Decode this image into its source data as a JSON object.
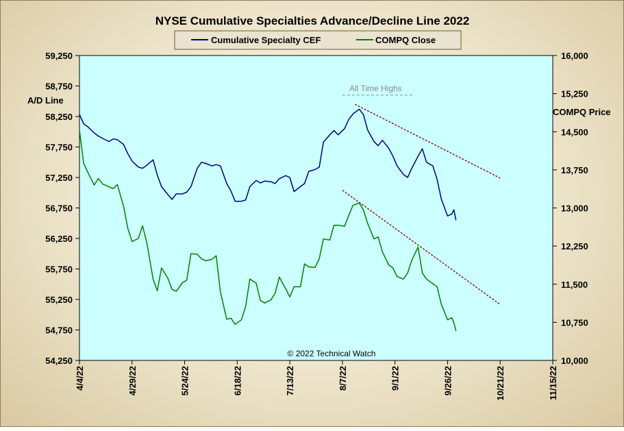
{
  "chart_data": {
    "type": "line",
    "title": "NYSE Cumulative Specialties Advance/Decline Line 2022",
    "ylabel_left": "A/D Line",
    "ylabel_right": "COMPQ Price",
    "annotation": "All Time Highs",
    "copyright": "© 2022 Technical Watch",
    "legend_position": "top-center",
    "grid": false,
    "colors": {
      "plot_bg": "#ccffff",
      "cef": "#000080",
      "compq": "#008000",
      "trend": "#800000",
      "annotation": "#8a8a8a"
    },
    "x_ticks": [
      "4/4/22",
      "4/29/22",
      "5/24/22",
      "6/18/22",
      "7/13/22",
      "8/7/22",
      "9/1/22",
      "9/26/22",
      "10/21/22",
      "11/15/22"
    ],
    "xlim": [
      "2022-04-04",
      "2022-11-15"
    ],
    "ylim_left": [
      54250,
      59250
    ],
    "yticks_left": [
      "59,250",
      "58,750",
      "58,250",
      "57,750",
      "57,250",
      "56,750",
      "56,250",
      "55,750",
      "55,250",
      "54,750",
      "54,250"
    ],
    "ylim_right": [
      10000,
      16000
    ],
    "yticks_right": [
      "16,000",
      "15,250",
      "14,500",
      "13,750",
      "13,000",
      "12,250",
      "11,500",
      "10,750",
      "10,000"
    ],
    "series": [
      {
        "name": "Cumulative Specialty CEF",
        "axis": "left",
        "points": [
          [
            "2022-04-04",
            58285
          ],
          [
            "2022-04-06",
            58130
          ],
          [
            "2022-04-08",
            58080
          ],
          [
            "2022-04-11",
            57980
          ],
          [
            "2022-04-13",
            57930
          ],
          [
            "2022-04-15",
            57890
          ],
          [
            "2022-04-18",
            57840
          ],
          [
            "2022-04-20",
            57880
          ],
          [
            "2022-04-22",
            57870
          ],
          [
            "2022-04-25",
            57790
          ],
          [
            "2022-04-27",
            57640
          ],
          [
            "2022-04-29",
            57520
          ],
          [
            "2022-05-02",
            57420
          ],
          [
            "2022-05-04",
            57400
          ],
          [
            "2022-05-06",
            57450
          ],
          [
            "2022-05-09",
            57540
          ],
          [
            "2022-05-11",
            57290
          ],
          [
            "2022-05-13",
            57100
          ],
          [
            "2022-05-16",
            56970
          ],
          [
            "2022-05-18",
            56890
          ],
          [
            "2022-05-20",
            56980
          ],
          [
            "2022-05-23",
            56980
          ],
          [
            "2022-05-25",
            57010
          ],
          [
            "2022-05-27",
            57100
          ],
          [
            "2022-05-30",
            57400
          ],
          [
            "2022-06-01",
            57500
          ],
          [
            "2022-06-03",
            57480
          ],
          [
            "2022-06-06",
            57440
          ],
          [
            "2022-06-08",
            57460
          ],
          [
            "2022-06-10",
            57440
          ],
          [
            "2022-06-13",
            57150
          ],
          [
            "2022-06-15",
            57030
          ],
          [
            "2022-06-17",
            56860
          ],
          [
            "2022-06-20",
            56860
          ],
          [
            "2022-06-22",
            56880
          ],
          [
            "2022-06-24",
            57100
          ],
          [
            "2022-06-27",
            57200
          ],
          [
            "2022-06-29",
            57160
          ],
          [
            "2022-07-01",
            57190
          ],
          [
            "2022-07-04",
            57180
          ],
          [
            "2022-07-06",
            57150
          ],
          [
            "2022-07-08",
            57230
          ],
          [
            "2022-07-11",
            57280
          ],
          [
            "2022-07-13",
            57250
          ],
          [
            "2022-07-15",
            57020
          ],
          [
            "2022-07-18",
            57100
          ],
          [
            "2022-07-20",
            57150
          ],
          [
            "2022-07-22",
            57350
          ],
          [
            "2022-07-25",
            57380
          ],
          [
            "2022-07-27",
            57420
          ],
          [
            "2022-07-29",
            57830
          ],
          [
            "2022-08-01",
            57950
          ],
          [
            "2022-08-03",
            58020
          ],
          [
            "2022-08-05",
            57950
          ],
          [
            "2022-08-08",
            58050
          ],
          [
            "2022-08-10",
            58200
          ],
          [
            "2022-08-12",
            58290
          ],
          [
            "2022-08-15",
            58370
          ],
          [
            "2022-08-17",
            58280
          ],
          [
            "2022-08-19",
            58030
          ],
          [
            "2022-08-22",
            57840
          ],
          [
            "2022-08-24",
            57770
          ],
          [
            "2022-08-26",
            57860
          ],
          [
            "2022-08-29",
            57730
          ],
          [
            "2022-08-31",
            57600
          ],
          [
            "2022-09-02",
            57440
          ],
          [
            "2022-09-05",
            57300
          ],
          [
            "2022-09-07",
            57250
          ],
          [
            "2022-09-09",
            57400
          ],
          [
            "2022-09-12",
            57600
          ],
          [
            "2022-09-14",
            57720
          ],
          [
            "2022-09-16",
            57500
          ],
          [
            "2022-09-19",
            57440
          ],
          [
            "2022-09-21",
            57220
          ],
          [
            "2022-09-23",
            56900
          ],
          [
            "2022-09-26",
            56620
          ],
          [
            "2022-09-28",
            56650
          ],
          [
            "2022-09-29",
            56720
          ],
          [
            "2022-09-30",
            56550
          ]
        ]
      },
      {
        "name": "COMPQ Close",
        "axis": "right",
        "points": [
          [
            "2022-04-04",
            14530
          ],
          [
            "2022-04-06",
            13880
          ],
          [
            "2022-04-08",
            13700
          ],
          [
            "2022-04-11",
            13450
          ],
          [
            "2022-04-13",
            13580
          ],
          [
            "2022-04-15",
            13470
          ],
          [
            "2022-04-18",
            13420
          ],
          [
            "2022-04-20",
            13380
          ],
          [
            "2022-04-22",
            13460
          ],
          [
            "2022-04-25",
            13030
          ],
          [
            "2022-04-27",
            12600
          ],
          [
            "2022-04-29",
            12340
          ],
          [
            "2022-05-02",
            12400
          ],
          [
            "2022-05-04",
            12650
          ],
          [
            "2022-05-06",
            12320
          ],
          [
            "2022-05-09",
            11600
          ],
          [
            "2022-05-11",
            11370
          ],
          [
            "2022-05-13",
            11820
          ],
          [
            "2022-05-16",
            11620
          ],
          [
            "2022-05-18",
            11400
          ],
          [
            "2022-05-20",
            11360
          ],
          [
            "2022-05-23",
            11530
          ],
          [
            "2022-05-25",
            11580
          ],
          [
            "2022-05-27",
            12100
          ],
          [
            "2022-05-30",
            12090
          ],
          [
            "2022-06-01",
            12000
          ],
          [
            "2022-06-03",
            11960
          ],
          [
            "2022-06-06",
            11990
          ],
          [
            "2022-06-08",
            12060
          ],
          [
            "2022-06-10",
            11350
          ],
          [
            "2022-06-13",
            10810
          ],
          [
            "2022-06-15",
            10830
          ],
          [
            "2022-06-17",
            10710
          ],
          [
            "2022-06-20",
            10800
          ],
          [
            "2022-06-22",
            11060
          ],
          [
            "2022-06-24",
            11600
          ],
          [
            "2022-06-27",
            11520
          ],
          [
            "2022-06-29",
            11180
          ],
          [
            "2022-07-01",
            11130
          ],
          [
            "2022-07-04",
            11190
          ],
          [
            "2022-07-06",
            11320
          ],
          [
            "2022-07-08",
            11640
          ],
          [
            "2022-07-11",
            11410
          ],
          [
            "2022-07-13",
            11250
          ],
          [
            "2022-07-15",
            11450
          ],
          [
            "2022-07-18",
            11450
          ],
          [
            "2022-07-20",
            11900
          ],
          [
            "2022-07-22",
            11840
          ],
          [
            "2022-07-25",
            11830
          ],
          [
            "2022-07-27",
            12000
          ],
          [
            "2022-07-29",
            12390
          ],
          [
            "2022-08-01",
            12370
          ],
          [
            "2022-08-03",
            12660
          ],
          [
            "2022-08-05",
            12660
          ],
          [
            "2022-08-08",
            12640
          ],
          [
            "2022-08-10",
            12850
          ],
          [
            "2022-08-12",
            13050
          ],
          [
            "2022-08-15",
            13100
          ],
          [
            "2022-08-17",
            12960
          ],
          [
            "2022-08-19",
            12700
          ],
          [
            "2022-08-22",
            12390
          ],
          [
            "2022-08-24",
            12430
          ],
          [
            "2022-08-26",
            12140
          ],
          [
            "2022-08-29",
            11880
          ],
          [
            "2022-08-31",
            11820
          ],
          [
            "2022-09-02",
            11650
          ],
          [
            "2022-09-05",
            11600
          ],
          [
            "2022-09-07",
            11720
          ],
          [
            "2022-09-09",
            11970
          ],
          [
            "2022-09-12",
            12230
          ],
          [
            "2022-09-14",
            11720
          ],
          [
            "2022-09-16",
            11600
          ],
          [
            "2022-09-19",
            11510
          ],
          [
            "2022-09-21",
            11450
          ],
          [
            "2022-09-23",
            11110
          ],
          [
            "2022-09-26",
            10800
          ],
          [
            "2022-09-28",
            10840
          ],
          [
            "2022-09-29",
            10740
          ],
          [
            "2022-09-30",
            10580
          ]
        ]
      }
    ],
    "trendlines": [
      {
        "axis": "left",
        "from": [
          "2022-08-13",
          58450
        ],
        "to": [
          "2022-10-21",
          57240
        ]
      },
      {
        "axis": "right",
        "from": [
          "2022-08-07",
          13350
        ],
        "to": [
          "2022-10-21",
          11100
        ]
      }
    ],
    "ath_line": {
      "axis": "left",
      "from": "2022-08-07",
      "to": "2022-09-10",
      "value": 58600
    }
  }
}
